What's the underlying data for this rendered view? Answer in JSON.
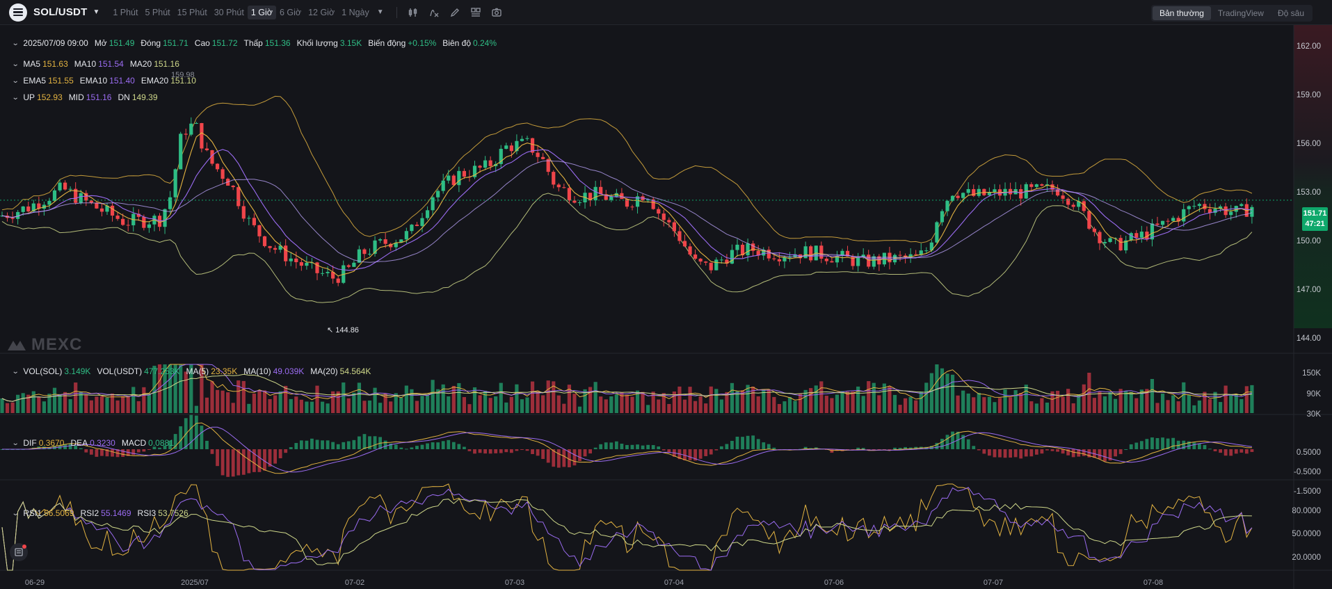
{
  "toolbar": {
    "pair": "SOL/USDT",
    "timeframes": [
      "1 Phút",
      "5 Phút",
      "15 Phút",
      "30 Phút",
      "1 Giờ",
      "6 Giờ",
      "12 Giờ",
      "1 Ngày"
    ],
    "active_timeframe": "1 Giờ",
    "tools": [
      "candle-type-icon",
      "indicator-icon",
      "draw-icon",
      "layout-icon",
      "screenshot-icon"
    ],
    "views": [
      "Bản thường",
      "TradingView",
      "Độ sâu"
    ],
    "active_view": "Bản thường"
  },
  "ohlc": {
    "time": "2025/07/09 09:00",
    "open_label": "Mở",
    "open": "151.49",
    "close_label": "Đóng",
    "close": "151.71",
    "high_label": "Cao",
    "high": "151.72",
    "low_label": "Thấp",
    "low": "151.36",
    "volume_label": "Khối lượng",
    "volume": "3.15K",
    "change_label": "Biến động",
    "change": "+0.15%",
    "amplitude_label": "Biên độ",
    "amplitude": "0.24%"
  },
  "ma": {
    "ma5_label": "MA5",
    "ma5": "151.63",
    "ma10_label": "MA10",
    "ma10": "151.54",
    "ma20_label": "MA20",
    "ma20": "151.16"
  },
  "ema": {
    "ema5_label": "EMA5",
    "ema5": "151.55",
    "ema10_label": "EMA10",
    "ema10": "151.40",
    "ema20_label": "EMA20",
    "ema20": "151.10"
  },
  "boll": {
    "up_label": "UP",
    "up": "152.93",
    "mid_label": "MID",
    "mid": "151.16",
    "dn_label": "DN",
    "dn": "149.39"
  },
  "annotations": {
    "high": "159.98",
    "low": "144.86"
  },
  "price_axis": [
    "162.00",
    "159.00",
    "156.00",
    "153.00",
    "150.00",
    "147.00",
    "144.00"
  ],
  "current_price": "151.71",
  "countdown": "47:21",
  "volume": {
    "vol_sol_label": "VOL(SOL)",
    "vol_sol": "3.149K",
    "vol_usdt_label": "VOL(USDT)",
    "vol_usdt": "477.253K",
    "ma5_label": "MA(5)",
    "ma5": "23.35K",
    "ma10_label": "MA(10)",
    "ma10": "49.039K",
    "ma20_label": "MA(20)",
    "ma20": "54.564K",
    "axis": [
      "150K",
      "90K",
      "30K"
    ]
  },
  "macd": {
    "dif_label": "DIF",
    "dif": "0.3670",
    "dea_label": "DEA",
    "dea": "0.3230",
    "macd_label": "MACD",
    "macd": "0.0881",
    "axis": [
      "0.5000",
      "-0.5000",
      "-1.5000"
    ]
  },
  "rsi": {
    "rsi1_label": "RSI1",
    "rsi1": "56.5069",
    "rsi2_label": "RSI2",
    "rsi2": "55.1469",
    "rsi3_label": "RSI3",
    "rsi3": "53.7526",
    "axis": [
      "80.0000",
      "50.0000",
      "20.0000"
    ]
  },
  "time_axis": [
    "06-29",
    "2025/07",
    "07-02",
    "07-03",
    "07-04",
    "07-06",
    "07-07",
    "07-08"
  ],
  "watermark": "MEXC",
  "colors": {
    "up": "#2ebd85",
    "down": "#f0454a",
    "ma5": "#e3b341",
    "ma10": "#9b6cf2",
    "ma20": "#cfd88a",
    "boll": "#e3b341",
    "background": "#14151a"
  },
  "chart_data": {
    "type": "candlestick",
    "series_visible": [
      "price candles",
      "MA5",
      "MA10",
      "MA20",
      "Bollinger",
      "Volume",
      "MACD",
      "RSI"
    ],
    "y_range_price": [
      143.0,
      163.5
    ]
  }
}
